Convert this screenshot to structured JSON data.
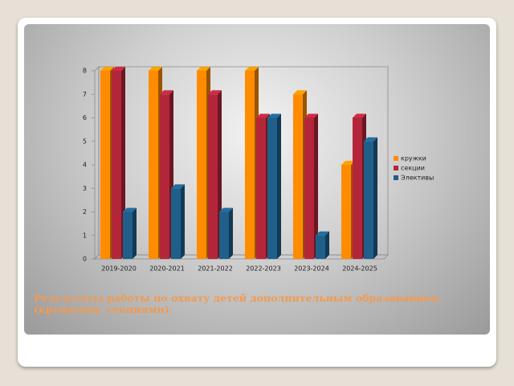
{
  "chart_data": {
    "type": "bar3d",
    "categories": [
      "2019-2020",
      "2020-2021",
      "2021-2022",
      "2022-2023",
      "2023-2024",
      "2024-2025"
    ],
    "series": [
      {
        "name": "кружки",
        "color": "#ff8c00",
        "values": [
          8,
          8,
          8,
          8,
          7,
          4
        ]
      },
      {
        "name": "секции",
        "color": "#b3263a",
        "values": [
          8,
          7,
          7,
          6,
          6,
          6
        ]
      },
      {
        "name": "Элективы",
        "color": "#1f5f8a",
        "values": [
          2,
          3,
          2,
          6,
          1,
          5
        ]
      }
    ],
    "ylim": [
      0,
      8
    ],
    "yticks": [
      0,
      1,
      2,
      3,
      4,
      5,
      6,
      7,
      8
    ],
    "grid": false,
    "legend": "right",
    "caption": [
      "Результаты работы по охвату детей дополнительным образованием",
      "(кружками, секциями)."
    ]
  }
}
